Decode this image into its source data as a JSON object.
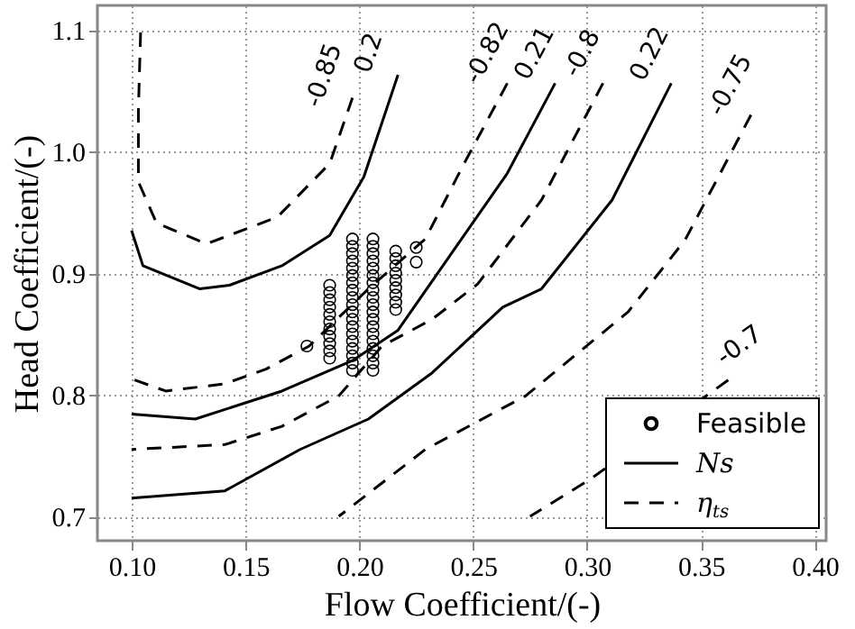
{
  "chart_data": {
    "type": "line",
    "xlabel": "Flow Coefficient/(-)",
    "ylabel": "Head Coefficient/(-)",
    "xlim": [
      0.085,
      0.405
    ],
    "ylim": [
      0.68,
      1.12
    ],
    "xticks": [
      {
        "value": 0.1,
        "label": "0.10"
      },
      0.15,
      {
        "value": 0.2,
        "label": "0.20"
      },
      0.25,
      {
        "value": 0.3,
        "label": "0.30"
      },
      0.35,
      {
        "value": 0.4,
        "label": "0.40"
      }
    ],
    "yticks": [
      0.7,
      0.8,
      0.9,
      {
        "value": 1,
        "label": "1.0"
      },
      1.1
    ],
    "grid": true,
    "legend": "bottom right",
    "series": [
      {
        "name": "Feasible",
        "type": "scatter",
        "marker": "circle",
        "color": "#000000",
        "x": [
          0.177,
          0.187,
          0.187,
          0.187,
          0.187,
          0.187,
          0.187,
          0.187,
          0.187,
          0.187,
          0.187,
          0.187,
          0.197,
          0.197,
          0.197,
          0.197,
          0.197,
          0.197,
          0.197,
          0.197,
          0.197,
          0.197,
          0.197,
          0.197,
          0.197,
          0.197,
          0.197,
          0.197,
          0.197,
          0.197,
          0.197,
          0.206,
          0.206,
          0.206,
          0.206,
          0.206,
          0.206,
          0.206,
          0.206,
          0.206,
          0.206,
          0.206,
          0.206,
          0.206,
          0.206,
          0.206,
          0.206,
          0.206,
          0.206,
          0.206,
          0.216,
          0.216,
          0.216,
          0.216,
          0.216,
          0.216,
          0.216,
          0.216,
          0.216,
          0.225,
          0.225
        ],
        "values": [
          0.84,
          0.83,
          0.836,
          0.842,
          0.848,
          0.854,
          0.86,
          0.866,
          0.872,
          0.878,
          0.884,
          0.89,
          0.82,
          0.826,
          0.832,
          0.838,
          0.844,
          0.85,
          0.856,
          0.862,
          0.868,
          0.874,
          0.88,
          0.886,
          0.892,
          0.898,
          0.904,
          0.91,
          0.916,
          0.922,
          0.928,
          0.82,
          0.826,
          0.832,
          0.838,
          0.844,
          0.85,
          0.856,
          0.862,
          0.868,
          0.874,
          0.88,
          0.886,
          0.892,
          0.898,
          0.904,
          0.91,
          0.916,
          0.922,
          0.928,
          0.87,
          0.876,
          0.882,
          0.888,
          0.894,
          0.9,
          0.906,
          0.912,
          0.918,
          0.909,
          0.921
        ]
      },
      {
        "name": "Ns",
        "line_style": "solid",
        "color": "#000000",
        "x": [
          0.217,
          0.202,
          0.187,
          0.166,
          0.143,
          0.13,
          0.105,
          0.1
        ],
        "values": [
          1.063,
          0.979,
          0.931,
          0.906,
          0.89,
          0.887,
          0.906,
          0.935
        ]
      },
      {
        "line_style": "solid",
        "color": "#000000",
        "x": [
          0.286,
          0.265,
          0.246,
          0.217,
          0.197,
          0.166,
          0.128,
          0.1
        ],
        "values": [
          1.056,
          0.982,
          0.931,
          0.853,
          0.828,
          0.803,
          0.78,
          0.784
        ]
      },
      {
        "line_style": "solid",
        "color": "#000000",
        "x": [
          0.337,
          0.311,
          0.28,
          0.263,
          0.232,
          0.204,
          0.174,
          0.141,
          0.1
        ],
        "values": [
          1.056,
          0.96,
          0.887,
          0.872,
          0.818,
          0.78,
          0.755,
          0.721,
          0.715
        ]
      },
      {
        "name": "η$_{ts}$",
        "line_style": "dashed",
        "color": "#000000",
        "x": [
          0.197,
          0.187,
          0.164,
          0.133,
          0.111,
          0.103,
          0.103,
          0.104
        ],
        "values": [
          1.044,
          0.99,
          0.946,
          0.924,
          0.941,
          0.975,
          1.034,
          1.1
        ]
      },
      {
        "line_style": "dashed",
        "color": "#000000",
        "x": [
          0.265,
          0.246,
          0.229,
          0.204,
          0.178,
          0.159,
          0.141,
          0.115,
          0.1
        ],
        "values": [
          1.056,
          0.99,
          0.928,
          0.887,
          0.84,
          0.821,
          0.809,
          0.803,
          0.813
        ]
      },
      {
        "line_style": "dashed",
        "color": "#000000",
        "x": [
          0.307,
          0.28,
          0.252,
          0.232,
          0.21,
          0.191,
          0.166,
          0.141,
          0.1
        ],
        "values": [
          1.056,
          0.96,
          0.891,
          0.862,
          0.84,
          0.799,
          0.774,
          0.759,
          0.755
        ]
      },
      {
        "line_style": "dashed",
        "color": "#000000",
        "x": [
          0.372,
          0.343,
          0.318,
          0.273,
          0.229,
          0.191
        ],
        "values": [
          1.03,
          0.927,
          0.868,
          0.799,
          0.755,
          0.7
        ]
      },
      {
        "line_style": "dashed",
        "color": "#000000",
        "x": [
          0.362,
          0.301,
          0.275
        ],
        "values": [
          0.812,
          0.73,
          0.7
        ]
      }
    ],
    "annotations": [
      "-0.85",
      "0.2",
      "-0.82",
      "0.21",
      "-0.8",
      "0.22",
      "-0.75",
      "-0.7"
    ]
  }
}
